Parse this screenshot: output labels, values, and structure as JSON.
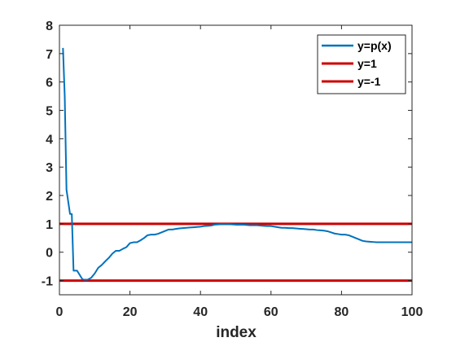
{
  "chart_data": {
    "type": "line",
    "title": "",
    "xlabel": "index",
    "ylabel": "",
    "xlim": [
      0,
      100
    ],
    "ylim": [
      -1.5,
      8
    ],
    "xticks": [
      0,
      20,
      40,
      60,
      80,
      100
    ],
    "yticks": [
      -1,
      0,
      1,
      2,
      3,
      4,
      5,
      6,
      7,
      8
    ],
    "grid": false,
    "legend_position": "top-right",
    "series": [
      {
        "name": "y=p(x)",
        "color": "#0072bd",
        "x": [
          1,
          1.5,
          2,
          3,
          3.5,
          4,
          5,
          6,
          6.5,
          7,
          8,
          9,
          10,
          11,
          12,
          13,
          14,
          15,
          16,
          17,
          18,
          19,
          20,
          21,
          22,
          23,
          24,
          25,
          26,
          27,
          28,
          29,
          30,
          31,
          32,
          33,
          34,
          35,
          36,
          37,
          38,
          39,
          40,
          41,
          42,
          43,
          44,
          45,
          46,
          47,
          48,
          49,
          50,
          51,
          52,
          53,
          54,
          55,
          56,
          57,
          58,
          59,
          60,
          61,
          62,
          63,
          64,
          65,
          66,
          67,
          68,
          69,
          70,
          71,
          72,
          73,
          74,
          75,
          76,
          77,
          78,
          79,
          80,
          81,
          82,
          83,
          84,
          85,
          86,
          87,
          88,
          89,
          90,
          91,
          92,
          93,
          94,
          95,
          96,
          97,
          98,
          99,
          100
        ],
        "y": [
          7.2,
          5.5,
          2.2,
          1.35,
          1.35,
          -0.65,
          -0.65,
          -0.85,
          -0.95,
          -0.97,
          -0.97,
          -0.9,
          -0.75,
          -0.55,
          -0.45,
          -0.32,
          -0.2,
          -0.05,
          0.05,
          0.05,
          0.12,
          0.18,
          0.32,
          0.35,
          0.35,
          0.42,
          0.5,
          0.6,
          0.62,
          0.62,
          0.65,
          0.7,
          0.75,
          0.8,
          0.8,
          0.82,
          0.84,
          0.85,
          0.86,
          0.87,
          0.88,
          0.89,
          0.9,
          0.92,
          0.93,
          0.94,
          0.97,
          0.98,
          0.99,
          0.99,
          0.99,
          0.98,
          0.97,
          0.97,
          0.97,
          0.96,
          0.95,
          0.95,
          0.95,
          0.94,
          0.93,
          0.92,
          0.92,
          0.9,
          0.88,
          0.86,
          0.86,
          0.85,
          0.85,
          0.84,
          0.83,
          0.82,
          0.81,
          0.8,
          0.8,
          0.78,
          0.77,
          0.76,
          0.74,
          0.7,
          0.66,
          0.64,
          0.62,
          0.62,
          0.6,
          0.55,
          0.5,
          0.45,
          0.4,
          0.38,
          0.37,
          0.36,
          0.35,
          0.35,
          0.35,
          0.35,
          0.35,
          0.35,
          0.35,
          0.35,
          0.35,
          0.35,
          0.35
        ]
      },
      {
        "name": "y=1",
        "color": "#cc0000",
        "x": [
          0,
          100
        ],
        "y": [
          1,
          1
        ]
      },
      {
        "name": "y=-1",
        "color": "#cc0000",
        "x": [
          0,
          100
        ],
        "y": [
          -1,
          -1
        ]
      }
    ]
  }
}
